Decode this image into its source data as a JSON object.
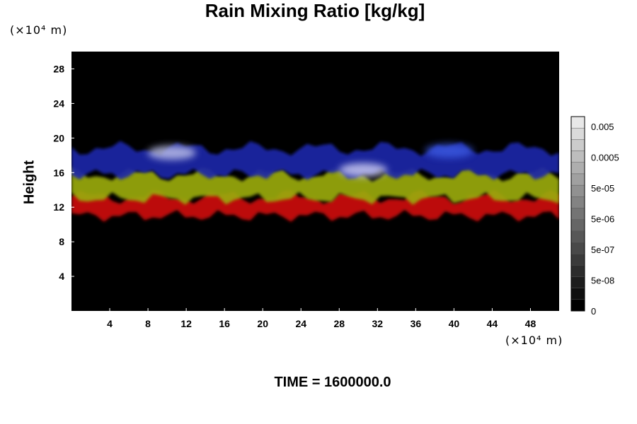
{
  "chart_data": {
    "type": "heatmap",
    "title": "Rain Mixing Ratio [kg/kg]",
    "xlabel": "",
    "ylabel": "Height",
    "x_unit": "(×10⁴ m)",
    "y_unit": "(×10⁴ m)",
    "xlim": [
      0,
      51
    ],
    "ylim": [
      0,
      30
    ],
    "x_ticks": [
      4,
      8,
      12,
      16,
      20,
      24,
      28,
      32,
      36,
      40,
      44,
      48
    ],
    "y_ticks": [
      4,
      8,
      12,
      16,
      20,
      24,
      28
    ],
    "background_color": "#000000",
    "bands": [
      {
        "color": "#cc1010",
        "y_bottom": 11.0,
        "y_top": 13.2
      },
      {
        "color": "#9aaa10",
        "y_bottom": 13.0,
        "y_top": 15.8
      },
      {
        "color": "#1a28a8",
        "y_bottom": 15.8,
        "y_top": 18.8
      }
    ],
    "highlights": [
      {
        "color": "#b8bce8",
        "x": 10.5,
        "y": 18.3
      },
      {
        "color": "#c8c8f0",
        "x": 30.5,
        "y": 16.3
      },
      {
        "color": "#3a58e0",
        "x": 39.5,
        "y": 18.5
      }
    ],
    "colorbar": {
      "labels": [
        "0.005",
        "0.0005",
        "5e-05",
        "5e-06",
        "5e-07",
        "5e-08",
        "0"
      ],
      "n_levels": 17
    },
    "footer": "TIME = 1600000.0"
  }
}
